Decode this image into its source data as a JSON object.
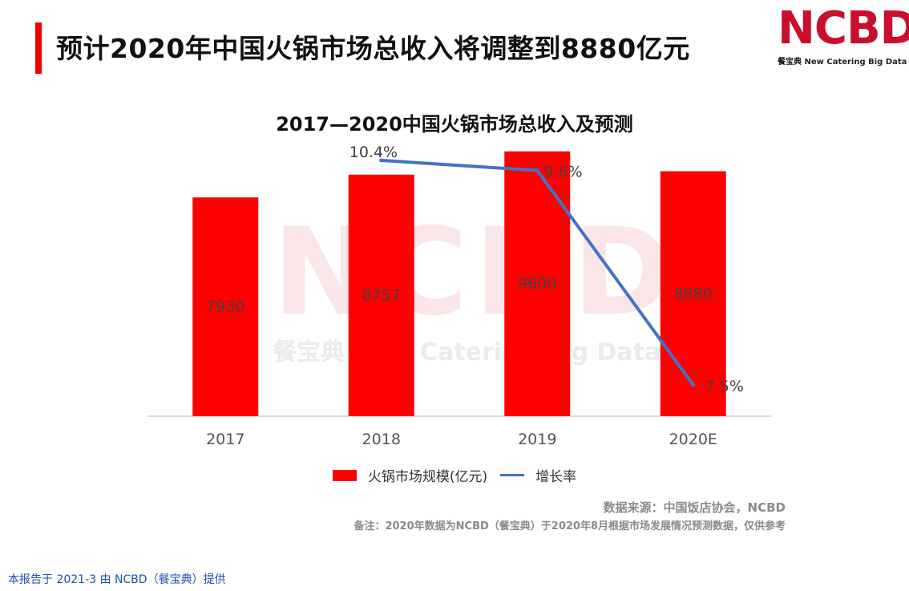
{
  "page": {
    "title": "预计2020年中国火锅市场总收入将调整到8880亿元",
    "logo_text": "NCBD",
    "logo_sub_cn": "餐宝典",
    "logo_sub_en": "New Catering Big Data",
    "source_note": "数据来源：中国饭店协会，NCBD",
    "remark_note": "备注：2020年数据为NCBD（餐宝典）于2020年8月根据市场发展情况预测数据，仅供参考",
    "footer": "本报告于 2021-3 由 NCBD（餐宝典）提供",
    "watermark_big": "NCBD",
    "watermark_sub": "餐宝典 New Catering Big Data"
  },
  "colors": {
    "accent": "#ee0000",
    "bar": "#ff0000",
    "line": "#4472c4",
    "footer_link": "#1f4fb5"
  },
  "chart_data": {
    "type": "bar",
    "title": "2017—2020中国火锅市场总收入及预测",
    "categories": [
      "2017",
      "2018",
      "2019",
      "2020E"
    ],
    "series": [
      {
        "name": "火锅市场规模(亿元)",
        "type": "bar",
        "values": [
          7930,
          8757,
          9600,
          8880
        ],
        "labels": [
          "7930",
          "8757",
          "9600",
          "8880"
        ]
      },
      {
        "name": "增长率",
        "type": "line",
        "values": [
          null,
          10.4,
          9.6,
          -7.5
        ],
        "labels": [
          "",
          "10.4%",
          "9.6%",
          "-7.5%"
        ]
      }
    ],
    "bar_axis_range": [
      0,
      10000
    ],
    "line_axis_range": [
      -10,
      12
    ],
    "grid": false,
    "legend_position": "bottom"
  }
}
